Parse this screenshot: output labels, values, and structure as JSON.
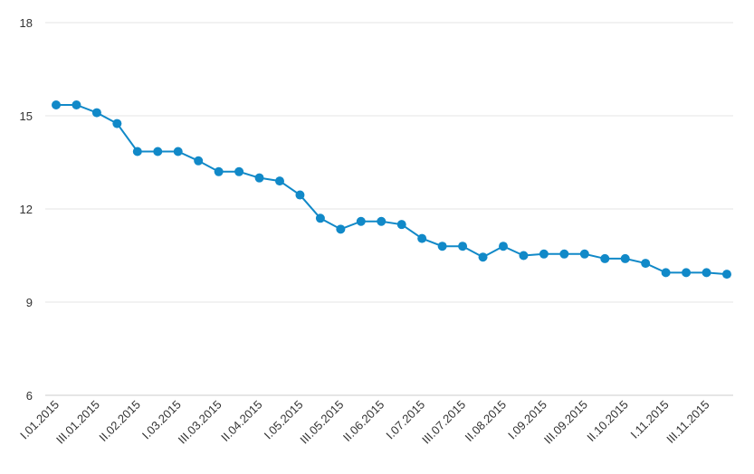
{
  "chart_data": {
    "type": "line",
    "title": "",
    "xlabel": "",
    "ylabel": "",
    "ylim": [
      6,
      18
    ],
    "yticks": [
      6,
      9,
      12,
      15,
      18
    ],
    "grid": true,
    "legend": "none",
    "color": "#1189c8",
    "categories": [
      "I.01.2015",
      "II.01.2015",
      "III.01.2015",
      "I.02.2015",
      "II.02.2015",
      "III.02.2015",
      "I.03.2015",
      "II.03.2015",
      "III.03.2015",
      "I.04.2015",
      "II.04.2015",
      "III.04.2015",
      "I.05.2015",
      "II.05.2015",
      "III.05.2015",
      "I.06.2015",
      "II.06.2015",
      "III.06.2015",
      "I.07.2015",
      "II.07.2015",
      "III.07.2015",
      "I.08.2015",
      "II.08.2015",
      "III.08.2015",
      "I.09.2015",
      "II.09.2015",
      "III.09.2015",
      "I.10.2015",
      "II.10.2015",
      "III.10.2015",
      "I.11.2015",
      "II.11.2015",
      "III.11.2015",
      "I.12.2015"
    ],
    "xtick_labels": [
      "I.01.2015",
      "III.01.2015",
      "II.02.2015",
      "I.03.2015",
      "III.03.2015",
      "II.04.2015",
      "I.05.2015",
      "III.05.2015",
      "II.06.2015",
      "I.07.2015",
      "III.07.2015",
      "II.08.2015",
      "I.09.2015",
      "III.09.2015",
      "II.10.2015",
      "I.11.2015",
      "III.11.2015"
    ],
    "values": [
      15.35,
      15.35,
      15.1,
      14.75,
      13.85,
      13.85,
      13.85,
      13.55,
      13.2,
      13.2,
      13.0,
      12.9,
      12.45,
      11.7,
      11.35,
      11.6,
      11.6,
      11.5,
      11.05,
      10.8,
      10.8,
      10.45,
      10.8,
      10.5,
      10.55,
      10.55,
      10.55,
      10.4,
      10.4,
      10.25,
      9.95,
      9.95,
      9.95,
      9.9
    ]
  }
}
